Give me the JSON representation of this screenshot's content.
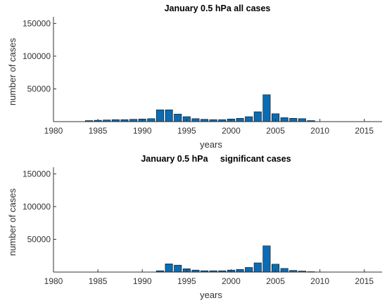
{
  "chart_data": [
    {
      "type": "bar",
      "title": "January 0.5 hPa all cases",
      "xlabel": "years",
      "ylabel": "number of cases",
      "xlim": [
        1980,
        2017
      ],
      "ylim": [
        0,
        160000
      ],
      "xticks": [
        1980,
        1985,
        1990,
        1995,
        2000,
        2005,
        2010,
        2015
      ],
      "yticks": [
        50000,
        100000,
        150000
      ],
      "bar_color": "#0a6cb4",
      "x": [
        1984,
        1985,
        1986,
        1987,
        1988,
        1989,
        1990,
        1991,
        1992,
        1993,
        1994,
        1995,
        1996,
        1997,
        1998,
        1999,
        2000,
        2001,
        2002,
        2003,
        2004,
        2005,
        2006,
        2007,
        2008,
        2009
      ],
      "values": [
        1500,
        2000,
        2500,
        3000,
        3000,
        3500,
        4000,
        4500,
        18000,
        18000,
        11500,
        7500,
        4500,
        3500,
        3000,
        3000,
        4000,
        5000,
        7500,
        15000,
        41000,
        12000,
        6000,
        5000,
        4500,
        1500
      ]
    },
    {
      "type": "bar",
      "title": "January 0.5 hPa     significant cases",
      "xlabel": "years",
      "ylabel": "number of cases",
      "xlim": [
        1980,
        2017
      ],
      "ylim": [
        0,
        160000
      ],
      "xticks": [
        1980,
        1985,
        1990,
        1995,
        2000,
        2005,
        2010,
        2015
      ],
      "yticks": [
        50000,
        100000,
        150000
      ],
      "bar_color": "#0a6cb4",
      "x": [
        1992,
        1993,
        1994,
        1995,
        1996,
        1997,
        1998,
        1999,
        2000,
        2001,
        2002,
        2003,
        2004,
        2005,
        2006,
        2007,
        2008,
        2009
      ],
      "values": [
        2000,
        12500,
        10500,
        5000,
        3000,
        2000,
        2000,
        2000,
        3000,
        4000,
        7000,
        14000,
        40000,
        12000,
        5500,
        2500,
        1500,
        500
      ]
    }
  ]
}
